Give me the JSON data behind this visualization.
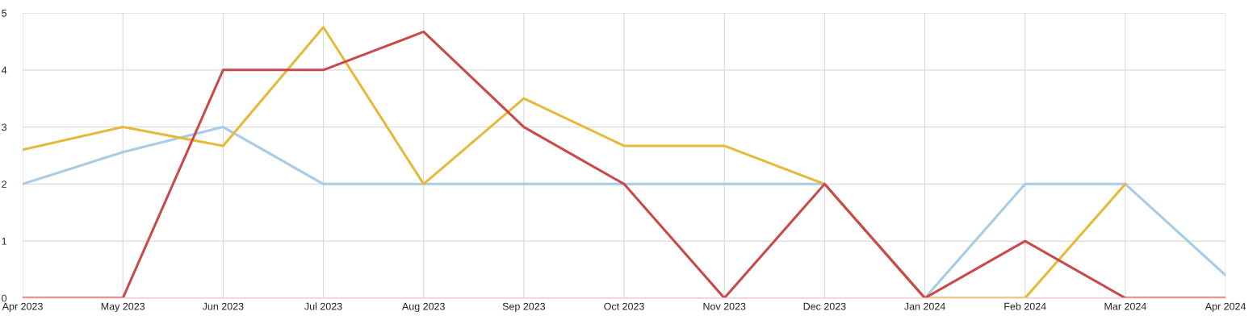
{
  "chart_data": {
    "type": "line",
    "categories": [
      "Apr 2023",
      "May 2023",
      "Jun 2023",
      "Jul 2023",
      "Aug 2023",
      "Sep 2023",
      "Oct 2023",
      "Nov 2023",
      "Dec 2023",
      "Jan 2024",
      "Feb 2024",
      "Mar 2024",
      "Apr 2024"
    ],
    "series": [
      {
        "color": "#a8cbe6",
        "values": [
          2,
          2.56,
          3,
          2,
          2,
          2,
          2,
          2,
          2,
          0,
          2,
          2,
          0.4
        ]
      },
      {
        "color": "#e6b93a",
        "values": [
          2.6,
          3,
          2.67,
          4.75,
          2,
          3.5,
          2.67,
          2.67,
          2,
          0,
          0,
          2,
          null
        ]
      },
      {
        "color": "#c94a4a",
        "values": [
          0,
          0,
          4,
          4,
          4.67,
          3,
          2,
          0,
          2,
          0,
          1,
          0,
          0
        ]
      }
    ],
    "ylim": [
      0,
      5
    ],
    "yticks": [
      0,
      1,
      2,
      3,
      4,
      5
    ],
    "grid": true,
    "marker": "none",
    "line_style": "solid"
  }
}
